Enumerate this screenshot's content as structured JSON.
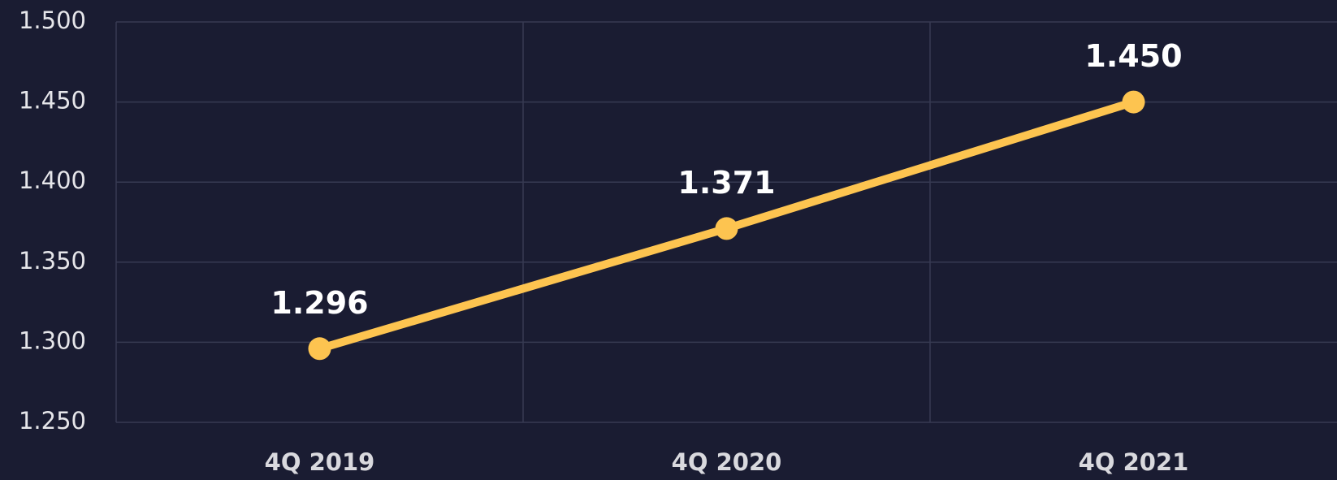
{
  "chart_data": {
    "type": "line",
    "categories": [
      "4Q 2019",
      "4Q 2020",
      "4Q 2021"
    ],
    "series": [
      {
        "color": "#fdc450",
        "values": [
          1.296,
          1.371,
          1.45
        ],
        "value_labels": [
          "1.296",
          "1.371",
          "1.450"
        ]
      }
    ],
    "ylim": [
      1.25,
      1.5
    ],
    "yticks": [
      {
        "value": 1.25,
        "label": "1.250"
      },
      {
        "value": 1.3,
        "label": "1.300"
      },
      {
        "value": 1.35,
        "label": "1.350"
      },
      {
        "value": 1.4,
        "label": "1.400"
      },
      {
        "value": 1.45,
        "label": "1.450"
      },
      {
        "value": 1.5,
        "label": "1.500"
      }
    ],
    "grid": true
  }
}
